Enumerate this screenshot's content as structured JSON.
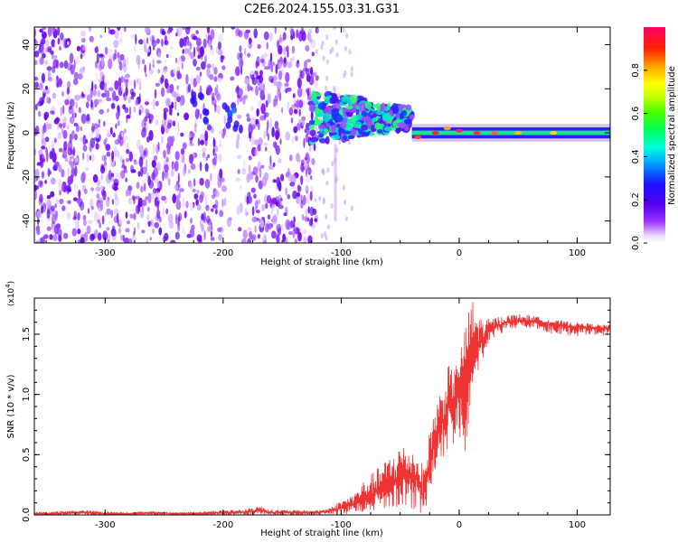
{
  "title": "C2E6.2024.155.03.31.G31",
  "colors": {
    "line": "#ee3333",
    "axis": "#000000",
    "background": "#ffffff"
  },
  "chart_data": [
    {
      "type": "heatmap",
      "xlabel": "Height of straight line (km)",
      "ylabel": "Frequency (Hz)",
      "xlim": [
        -360,
        128
      ],
      "ylim": [
        -50,
        48
      ],
      "xticks": [
        "-300",
        "-200",
        "-100",
        "0",
        "100"
      ],
      "yticks": [
        "-40",
        "-20",
        "0",
        "20",
        "40"
      ],
      "colorbar": {
        "label": "Normalized spectral amplitude",
        "range": [
          0.0,
          1.0
        ],
        "ticks": [
          "0.0",
          "0.2",
          "0.4",
          "0.6",
          "0.8"
        ],
        "colormap": "rainbow (white → purple → blue → cyan → green → yellow → red → magenta)"
      },
      "features": [
        {
          "region": "x < -120 km",
          "description": "broadband noise, purple speckle over full frequency range"
        },
        {
          "region": "-120 to -40 km",
          "description": "band around 0–10 Hz with cyan/green patches, amplitude 0.3–0.5"
        },
        {
          "region": "x > -40 km",
          "description": "narrow carrier line at ~0 Hz, peaks near 0.8–1.0 at around -35, -20, 0 and 15 km"
        }
      ],
      "grid": false
    },
    {
      "type": "line",
      "xlabel": "Height of straight line (km)",
      "ylabel": "SNR (10 * v/v)",
      "y_multiplier": "(x10^4)",
      "xlim": [
        -360,
        128
      ],
      "ylim": [
        0,
        1.8
      ],
      "xticks": [
        "-300",
        "-200",
        "-100",
        "0",
        "100"
      ],
      "yticks": [
        "0.0",
        "0.5",
        "1.0",
        "1.5"
      ],
      "grid": false,
      "series": [
        {
          "x": [
            -360,
            -340,
            -320,
            -300,
            -280,
            -260,
            -240,
            -220,
            -200,
            -180,
            -170,
            -160,
            -140,
            -120,
            -110,
            -100,
            -90,
            -80,
            -70,
            -60,
            -50,
            -40,
            -35,
            -30,
            -25,
            -20,
            -15,
            -10,
            -5,
            0,
            5,
            10,
            15,
            20,
            25,
            30,
            40,
            50,
            60,
            70,
            80,
            90,
            100,
            110,
            120,
            128
          ],
          "y": [
            0.01,
            0.01,
            0.02,
            0.01,
            0.01,
            0.02,
            0.01,
            0.01,
            0.02,
            0.02,
            0.04,
            0.02,
            0.02,
            0.02,
            0.03,
            0.06,
            0.09,
            0.14,
            0.19,
            0.24,
            0.3,
            0.33,
            0.28,
            0.15,
            0.45,
            0.65,
            0.75,
            0.88,
            0.95,
            1.1,
            1.18,
            1.3,
            1.4,
            1.47,
            1.52,
            1.56,
            1.6,
            1.61,
            1.61,
            1.6,
            1.58,
            1.57,
            1.56,
            1.56,
            1.55,
            1.55
          ],
          "lo": [
            0.0,
            0.0,
            0.0,
            0.0,
            0.0,
            0.0,
            0.0,
            0.0,
            0.0,
            0.0,
            0.0,
            0.0,
            0.0,
            0.0,
            0.0,
            0.0,
            0.01,
            0.03,
            0.04,
            0.06,
            0.05,
            0.05,
            0.02,
            0.02,
            0.12,
            0.35,
            0.4,
            0.5,
            0.55,
            0.55,
            0.5,
            0.85,
            1.15,
            1.3,
            1.4,
            1.48,
            1.53,
            1.55,
            1.55,
            1.53,
            1.5,
            1.49,
            1.48,
            1.5,
            1.49,
            1.49
          ],
          "hi": [
            0.02,
            0.03,
            0.04,
            0.03,
            0.02,
            0.03,
            0.02,
            0.03,
            0.04,
            0.05,
            0.08,
            0.05,
            0.04,
            0.04,
            0.06,
            0.12,
            0.17,
            0.3,
            0.38,
            0.48,
            0.6,
            0.55,
            0.5,
            0.4,
            0.7,
            0.95,
            1.05,
            1.25,
            1.2,
            1.32,
            1.55,
            1.82,
            1.72,
            1.62,
            1.63,
            1.64,
            1.66,
            1.67,
            1.66,
            1.64,
            1.62,
            1.61,
            1.6,
            1.59,
            1.58,
            1.58
          ]
        }
      ]
    }
  ]
}
